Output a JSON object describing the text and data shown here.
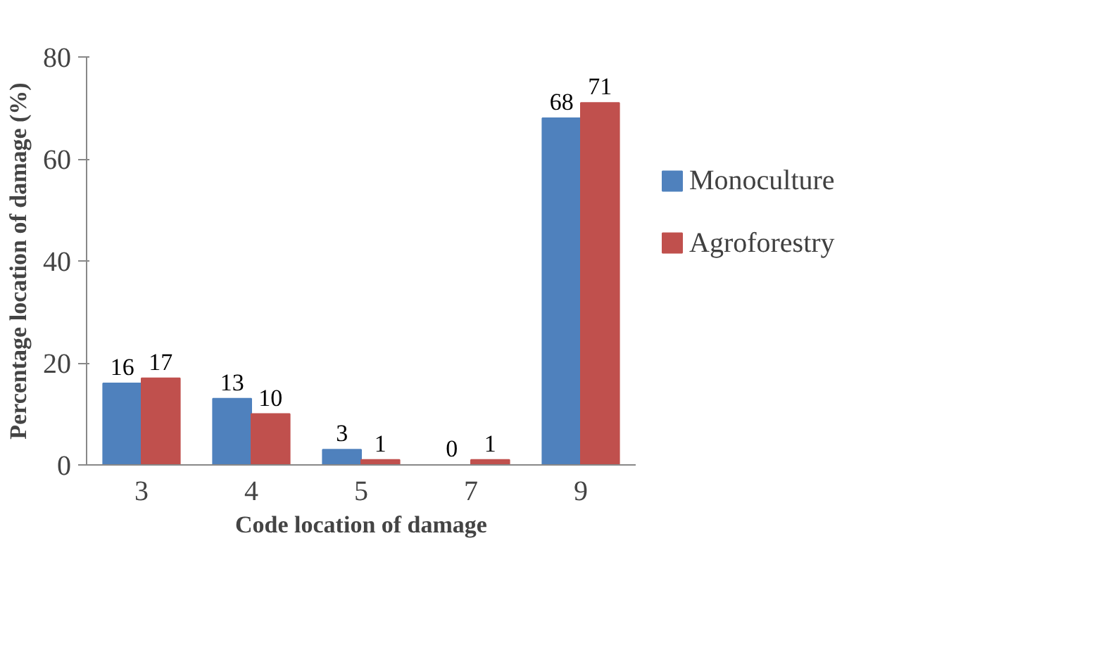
{
  "chart_data": {
    "type": "bar",
    "xlabel": "Code location of damage",
    "ylabel": "Percentage location of damage (%)",
    "categories": [
      "3",
      "4",
      "5",
      "7",
      "9"
    ],
    "series": [
      {
        "name": "Monoculture",
        "color": "#4f81bd",
        "values": [
          16,
          13,
          3,
          0,
          68
        ]
      },
      {
        "name": "Agroforestry",
        "color": "#c0504d",
        "values": [
          17,
          10,
          1,
          1,
          71
        ]
      }
    ],
    "ylim": [
      0,
      80
    ],
    "yticks": [
      0,
      20,
      40,
      60,
      80
    ],
    "grid": false,
    "legend": "right",
    "data_labels": true
  }
}
